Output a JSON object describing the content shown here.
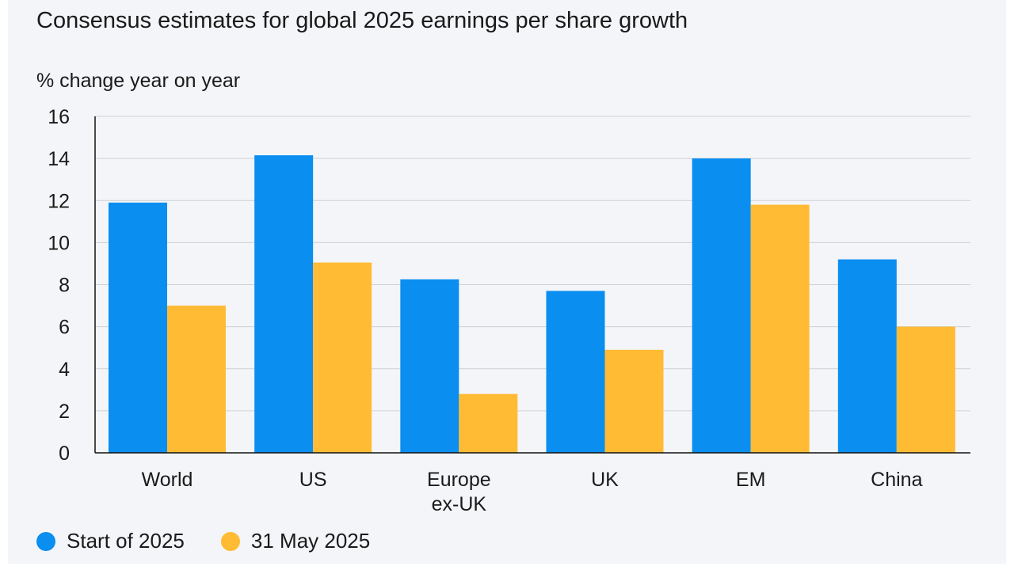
{
  "chart_data": {
    "type": "bar",
    "title": "Consensus estimates for global 2025 earnings per share growth",
    "subtitle": "% change year on year",
    "categories": [
      "World",
      "US",
      "Europe\nex-UK",
      "UK",
      "EM",
      "China"
    ],
    "series": [
      {
        "name": "Start of 2025",
        "color": "#0a8ef0",
        "values": [
          11.9,
          14.15,
          8.25,
          7.7,
          14.0,
          9.2
        ]
      },
      {
        "name": "31 May 2025",
        "color": "#ffbb33",
        "values": [
          7.0,
          9.05,
          2.8,
          4.9,
          11.8,
          6.0
        ]
      }
    ],
    "yticks": [
      0,
      2,
      4,
      6,
      8,
      10,
      12,
      14,
      16
    ],
    "ylim": [
      0,
      16
    ],
    "xlabel": "",
    "ylabel": "",
    "grid": true,
    "legend_position": "bottom-left"
  }
}
